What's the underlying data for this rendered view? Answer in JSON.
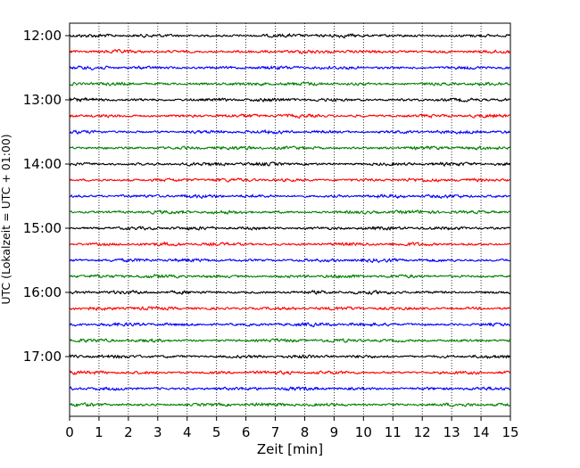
{
  "chart_data": {
    "type": "line",
    "subtype": "helicorder",
    "xlabel": "Zeit  [min]",
    "ylabel": "UTC (Lokalzeit = UTC + 01:00)",
    "xlim": [
      0,
      15
    ],
    "x_ticks": [
      0,
      1,
      2,
      3,
      4,
      5,
      6,
      7,
      8,
      9,
      10,
      11,
      12,
      13,
      14,
      15
    ],
    "x_tick_labels": [
      "0",
      "1",
      "2",
      "3",
      "4",
      "5",
      "6",
      "7",
      "8",
      "9",
      "10",
      "11",
      "12",
      "13",
      "14",
      "15"
    ],
    "y_tick_labels": [
      "12:00",
      "13:00",
      "14:00",
      "15:00",
      "16:00",
      "17:00"
    ],
    "trace_start_utc": "12:00",
    "trace_interval_min": 15,
    "trace_count": 24,
    "trace_colors": [
      "#000000",
      "#ff0000",
      "#0000ff",
      "#008000"
    ],
    "grid_vertical_dotted": true
  }
}
